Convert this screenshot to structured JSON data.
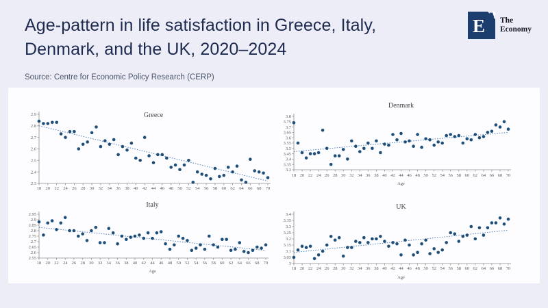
{
  "header": {
    "title_line1": "Age-pattern in life satisfaction in Greece, Italy,",
    "title_line2": "Denmark, and the UK, 2020–2024",
    "source": "Source: Centre for Economic Policy Research (CERP)"
  },
  "brand": {
    "logo_letter": "E",
    "name_line1": "The",
    "name_line2": "Economy",
    "logo_color": "#1b3e6f"
  },
  "colors": {
    "background": "#ecedf7",
    "card": "#fdfdff",
    "title_text": "#1e2b4f",
    "dot": "#1f4e79",
    "trend": "#4a7ebb",
    "axis": "#8c8c8c",
    "chart_text": "#595959"
  },
  "chart_data": [
    {
      "type": "scatter",
      "title": "Greece",
      "xlabel": "",
      "ylabel": "",
      "xlim": [
        18,
        70
      ],
      "ylim": [
        2.3,
        2.9
      ],
      "ytick_step": 0.1,
      "xtick_step": 2,
      "grid": false,
      "legend": "none",
      "x": [
        18,
        19,
        20,
        21,
        22,
        23,
        24,
        25,
        26,
        27,
        28,
        29,
        30,
        31,
        32,
        33,
        34,
        35,
        36,
        37,
        38,
        39,
        40,
        41,
        42,
        43,
        44,
        45,
        46,
        47,
        48,
        49,
        50,
        51,
        52,
        53,
        54,
        55,
        56,
        57,
        58,
        59,
        60,
        61,
        62,
        63,
        64,
        65,
        66,
        67,
        68,
        69,
        70
      ],
      "y": [
        2.84,
        2.82,
        2.82,
        2.83,
        2.83,
        2.73,
        2.7,
        2.75,
        2.75,
        2.6,
        2.64,
        2.66,
        2.74,
        2.79,
        2.62,
        2.67,
        2.64,
        2.68,
        2.55,
        2.62,
        2.59,
        2.65,
        2.52,
        2.5,
        2.7,
        2.54,
        2.48,
        2.55,
        2.55,
        2.52,
        2.44,
        2.46,
        2.42,
        2.46,
        2.5,
        2.31,
        2.4,
        2.38,
        2.37,
        2.34,
        2.43,
        2.36,
        2.37,
        2.44,
        2.4,
        2.45,
        2.33,
        2.31,
        2.51,
        2.41,
        2.4,
        2.39,
        2.35
      ],
      "trend": {
        "x": [
          18,
          70
        ],
        "y": [
          2.8,
          2.32
        ],
        "style": "dotted"
      }
    },
    {
      "type": "scatter",
      "title": "Denmark",
      "xlabel": "Age",
      "ylabel": "",
      "xlim": [
        18,
        70
      ],
      "ylim": [
        3.3,
        3.8
      ],
      "ytick_step": 0.05,
      "xtick_step": 2,
      "grid": false,
      "legend": "none",
      "x": [
        18,
        19,
        20,
        21,
        22,
        23,
        24,
        25,
        26,
        27,
        28,
        29,
        30,
        31,
        32,
        33,
        34,
        35,
        36,
        37,
        38,
        39,
        40,
        41,
        42,
        43,
        44,
        45,
        46,
        47,
        48,
        49,
        50,
        51,
        52,
        53,
        54,
        55,
        56,
        57,
        58,
        59,
        60,
        61,
        62,
        63,
        64,
        65,
        66,
        67,
        68,
        69,
        70
      ],
      "y": [
        3.74,
        3.55,
        3.46,
        3.41,
        3.45,
        3.45,
        3.46,
        3.67,
        3.5,
        3.35,
        3.43,
        3.43,
        3.49,
        3.4,
        3.57,
        3.52,
        3.47,
        3.5,
        3.55,
        3.5,
        3.57,
        3.46,
        3.54,
        3.53,
        3.63,
        3.58,
        3.64,
        3.56,
        3.57,
        3.52,
        3.63,
        3.51,
        3.59,
        3.58,
        3.53,
        3.56,
        3.55,
        3.62,
        3.63,
        3.61,
        3.62,
        3.55,
        3.59,
        3.58,
        3.63,
        3.6,
        3.61,
        3.65,
        3.66,
        3.72,
        3.7,
        3.75,
        3.68
      ],
      "trend": {
        "x": [
          18,
          70
        ],
        "y": [
          3.47,
          3.65
        ],
        "style": "dotted"
      }
    },
    {
      "type": "scatter",
      "title": "Italy",
      "xlabel": "Age",
      "ylabel": "",
      "xlim": [
        18,
        70
      ],
      "ylim": [
        2.55,
        2.95
      ],
      "ytick_step": 0.05,
      "xtick_step": 2,
      "grid": false,
      "legend": "none",
      "x": [
        18,
        19,
        20,
        21,
        22,
        23,
        24,
        25,
        26,
        27,
        28,
        29,
        30,
        31,
        32,
        33,
        34,
        35,
        36,
        37,
        38,
        39,
        40,
        41,
        42,
        43,
        44,
        45,
        46,
        47,
        48,
        49,
        50,
        51,
        52,
        53,
        54,
        55,
        56,
        57,
        58,
        59,
        60,
        61,
        62,
        63,
        64,
        65,
        66,
        67,
        68,
        69,
        70
      ],
      "y": [
        2.88,
        2.76,
        2.87,
        2.89,
        2.81,
        2.87,
        2.92,
        2.8,
        2.8,
        2.75,
        2.77,
        2.71,
        2.8,
        2.83,
        2.69,
        2.69,
        2.82,
        2.78,
        2.68,
        2.75,
        2.72,
        2.74,
        2.75,
        2.76,
        2.73,
        2.78,
        2.73,
        2.78,
        2.79,
        2.68,
        2.63,
        2.67,
        2.75,
        2.73,
        2.71,
        2.62,
        2.64,
        2.67,
        2.63,
        2.75,
        2.67,
        2.65,
        2.72,
        2.72,
        2.62,
        2.63,
        2.69,
        2.61,
        2.6,
        2.62,
        2.65,
        2.64,
        2.67
      ],
      "trend": {
        "x": [
          18,
          70
        ],
        "y": [
          2.83,
          2.62
        ],
        "style": "dotted"
      }
    },
    {
      "type": "scatter",
      "title": "UK",
      "xlabel": "Age",
      "ylabel": "",
      "xlim": [
        18,
        70
      ],
      "ylim": [
        3.0,
        3.4
      ],
      "ytick_step": 0.05,
      "xtick_step": 2,
      "grid": false,
      "legend": "none",
      "x": [
        18,
        19,
        20,
        21,
        22,
        23,
        24,
        25,
        26,
        27,
        28,
        29,
        30,
        31,
        32,
        33,
        34,
        35,
        36,
        37,
        38,
        39,
        40,
        41,
        42,
        43,
        44,
        45,
        46,
        47,
        48,
        49,
        50,
        51,
        52,
        53,
        54,
        55,
        56,
        57,
        58,
        59,
        60,
        61,
        62,
        63,
        64,
        65,
        66,
        67,
        68,
        69,
        70
      ],
      "y": [
        3.05,
        3.11,
        3.14,
        3.13,
        3.14,
        3.04,
        3.07,
        3.1,
        3.15,
        3.22,
        3.19,
        3.21,
        3.06,
        3.13,
        3.13,
        3.18,
        3.17,
        3.21,
        3.17,
        3.2,
        3.2,
        3.22,
        3.18,
        3.14,
        3.17,
        3.16,
        3.07,
        3.19,
        3.15,
        3.07,
        3.09,
        3.16,
        3.19,
        3.08,
        3.12,
        3.09,
        3.11,
        3.17,
        3.25,
        3.24,
        3.18,
        3.22,
        3.23,
        3.3,
        3.2,
        3.29,
        3.23,
        3.29,
        3.33,
        3.33,
        3.37,
        3.32,
        3.36
      ],
      "trend": {
        "x": [
          18,
          70
        ],
        "y": [
          3.09,
          3.27
        ],
        "style": "dotted"
      }
    }
  ]
}
